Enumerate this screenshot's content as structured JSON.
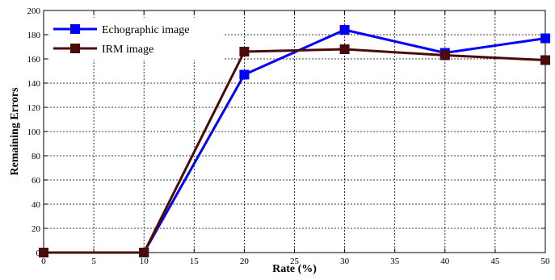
{
  "chart_data": {
    "type": "line",
    "title": "",
    "xlabel": "Rate (%)",
    "ylabel": "Remaining Errors",
    "xlim": [
      0,
      50
    ],
    "ylim": [
      0,
      200
    ],
    "x_ticks": [
      0,
      5,
      10,
      15,
      20,
      25,
      30,
      35,
      40,
      45,
      50
    ],
    "y_ticks": [
      0,
      20,
      40,
      60,
      80,
      100,
      120,
      140,
      160,
      180,
      200
    ],
    "grid": true,
    "legend_position": "top-left",
    "series": [
      {
        "name": "Echographic image",
        "color": "#0000ff",
        "marker": "square",
        "x": [
          0,
          10,
          20,
          30,
          40,
          50
        ],
        "y": [
          0,
          0,
          147,
          184,
          165,
          177
        ]
      },
      {
        "name": "IRM image",
        "color": "#4b0b0b",
        "marker": "square",
        "x": [
          0,
          10,
          20,
          30,
          40,
          50
        ],
        "y": [
          0,
          0,
          166,
          168,
          163,
          159
        ]
      }
    ]
  }
}
